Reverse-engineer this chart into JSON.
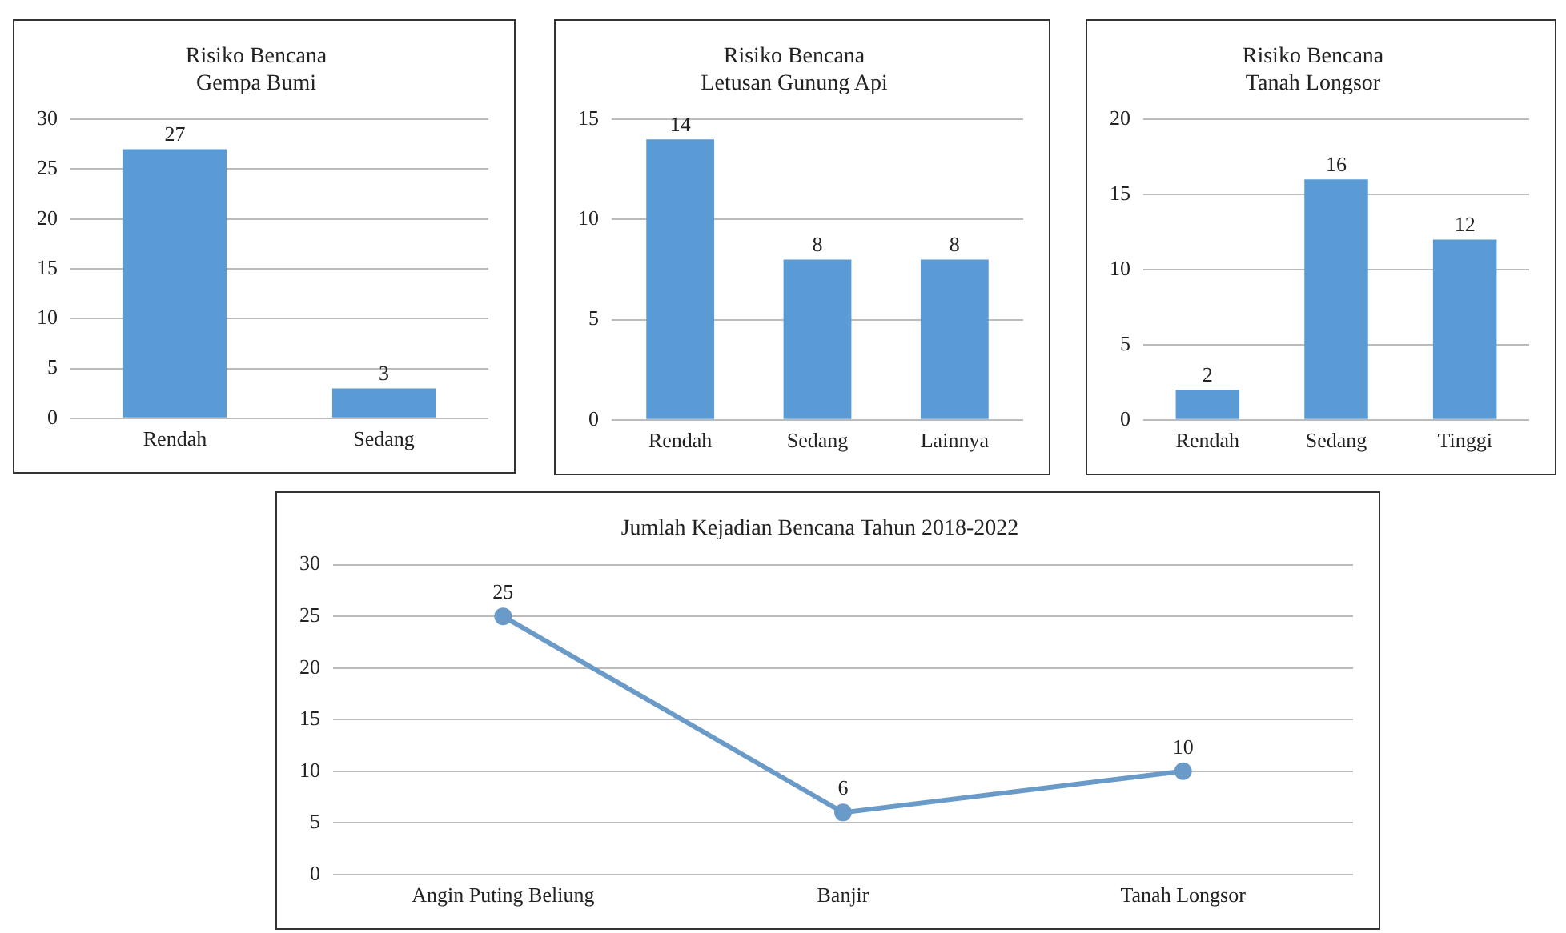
{
  "chart_data": [
    {
      "type": "bar",
      "title": "Risiko Bencana\nGempa Bumi",
      "categories": [
        "Rendah",
        "Sedang"
      ],
      "values": [
        27,
        3
      ],
      "color": "#5b9bd5",
      "ylim": [
        0,
        30
      ],
      "yticks": [
        0,
        5,
        10,
        15,
        20,
        25,
        30
      ],
      "grid": "y",
      "data_labels": true
    },
    {
      "type": "bar",
      "title": "Risiko Bencana\nLetusan Gunung Api",
      "categories": [
        "Rendah",
        "Sedang",
        "Lainnya"
      ],
      "values": [
        14,
        8,
        8
      ],
      "color": "#5b9bd5",
      "ylim": [
        0,
        15
      ],
      "yticks": [
        0,
        5,
        10,
        15
      ],
      "grid": "y",
      "data_labels": true
    },
    {
      "type": "bar",
      "title": "Risiko Bencana\nTanah Longsor",
      "categories": [
        "Rendah",
        "Sedang",
        "Tinggi"
      ],
      "values": [
        2,
        16,
        12
      ],
      "color": "#5b9bd5",
      "ylim": [
        0,
        20
      ],
      "yticks": [
        0,
        5,
        10,
        15,
        20
      ],
      "grid": "y",
      "data_labels": true
    },
    {
      "type": "line",
      "title": "Jumlah Kejadian Bencana Tahun 2018-2022",
      "categories": [
        "Angin Puting Beliung",
        "Banjir",
        "Tanah Longsor"
      ],
      "values": [
        25,
        6,
        10
      ],
      "color": "#6a9bc8",
      "ylim": [
        0,
        30
      ],
      "yticks": [
        0,
        5,
        10,
        15,
        20,
        25,
        30
      ],
      "grid": "y",
      "marker": "circle",
      "line_style": "solid",
      "data_labels": true
    }
  ]
}
